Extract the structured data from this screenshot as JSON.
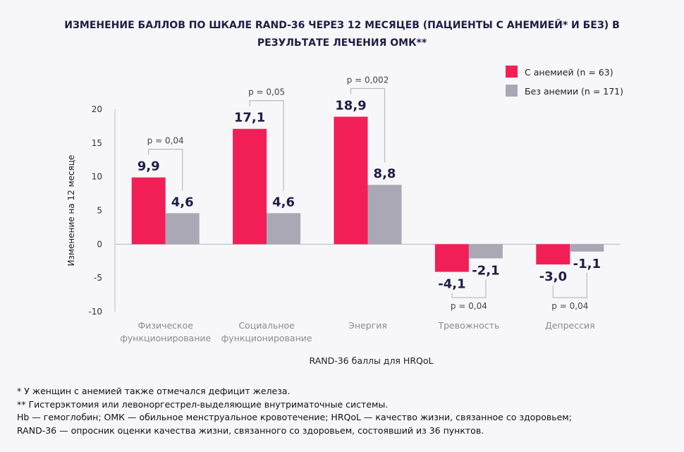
{
  "chart_data": {
    "type": "bar",
    "title_lines": [
      "ИЗМЕНЕНИЕ БАЛЛОВ ПО ШКАЛЕ RAND-36 ЧЕРЕЗ 12 МЕСЯЦЕВ (ПАЦИЕНТЫ С АНЕМИЕЙ* И БЕЗ) В",
      "РЕЗУЛЬТАТЕ ЛЕЧЕНИЯ ОМК**"
    ],
    "categories": [
      [
        "Физическое",
        "функционирование"
      ],
      [
        "Социальное",
        "функционирование"
      ],
      [
        "Энергия"
      ],
      [
        "Тревожность"
      ],
      [
        "Депрессия"
      ]
    ],
    "series": [
      {
        "name": "С анемией (n = 63)",
        "color": "#f21f56",
        "values": [
          9.9,
          17.1,
          18.9,
          -4.1,
          -3.0
        ],
        "labels": [
          "9,9",
          "17,1",
          "18,9",
          "-4,1",
          "-3,0"
        ]
      },
      {
        "name": "Без анемии (n = 171)",
        "color": "#aaa8b5",
        "values": [
          4.6,
          4.6,
          8.8,
          -2.1,
          -1.1
        ],
        "labels": [
          "4,6",
          "4,6",
          "8,8",
          "-2,1",
          "-1,1"
        ]
      }
    ],
    "p_values": [
      "p = 0,04",
      "p = 0,05",
      "p = 0,002",
      "p = 0,04",
      "p = 0,04"
    ],
    "ylabel": "Изменение на 12 месяце",
    "xlabel": "RAND-36 баллы для HRQoL",
    "ylim": [
      -10,
      20
    ],
    "yticks": [
      -10,
      -5,
      0,
      5,
      10,
      15,
      20
    ],
    "ytick_labels": [
      "-10",
      "-5",
      "0",
      "5",
      "10",
      "15",
      "20"
    ],
    "legend_position": "top-right",
    "grid": false
  },
  "footnotes": [
    "* У женщин с анемией также отмечался дефицит железа.",
    "** Гистерэктомия или левоноргестрел-выделяющие внутриматочные системы.",
    "Hb — гемоглобин; ОМК — обильное менструальное кровотечение; HRQoL — качество жизни, связанное со здоровьем;",
    "RAND-36 — опросник оценки качества жизни, связанного со здоровьем, состоявший из 36 пунктов."
  ]
}
